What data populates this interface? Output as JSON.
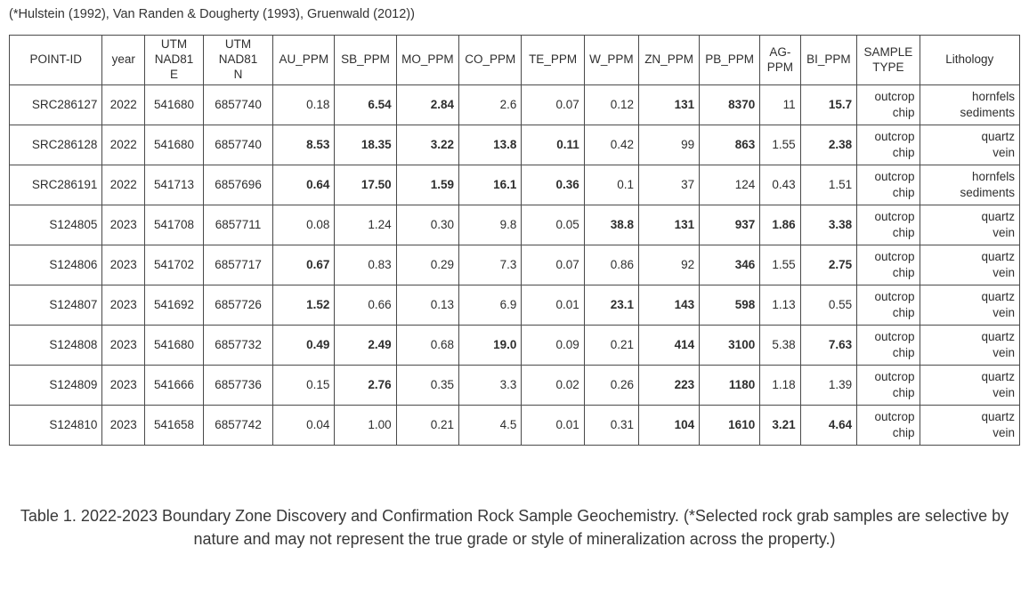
{
  "attribution": "(*Hulstein (1992), Van Randen & Dougherty (1993), Gruenwald (2012))",
  "caption": "Table 1. 2022-2023 Boundary Zone Discovery and Confirmation Rock Sample Geochemistry. (*Selected rock grab samples are selective by nature and may not represent the true grade or style of mineralization across the property.)",
  "colors": {
    "text": "#2e2e2e",
    "border": "#4a4a4a",
    "background": "#ffffff"
  },
  "table": {
    "columns": [
      {
        "key": "point_id",
        "label": "POINT-ID",
        "align": "right",
        "width": "9.2%"
      },
      {
        "key": "year",
        "label": "year",
        "align": "center",
        "width": "4.2%"
      },
      {
        "key": "utm_nad81_e",
        "label": "UTM\nNAD81\nE",
        "align": "center",
        "width": "5.8%"
      },
      {
        "key": "utm_nad81_n",
        "label": "UTM\nNAD81\nN",
        "align": "center",
        "width": "6.9%"
      },
      {
        "key": "au_ppm",
        "label": "AU_PPM",
        "align": "right",
        "width": "6.1%"
      },
      {
        "key": "sb_ppm",
        "label": "SB_PPM",
        "align": "right",
        "width": "6.1%"
      },
      {
        "key": "mo_ppm",
        "label": "MO_PPM",
        "align": "right",
        "width": "6.2%"
      },
      {
        "key": "co_ppm",
        "label": "CO_PPM",
        "align": "right",
        "width": "6.2%"
      },
      {
        "key": "te_ppm",
        "label": "TE_PPM",
        "align": "right",
        "width": "6.2%"
      },
      {
        "key": "w_ppm",
        "label": "W_PPM",
        "align": "right",
        "width": "5.4%"
      },
      {
        "key": "zn_ppm",
        "label": "ZN_PPM",
        "align": "right",
        "width": "6.0%"
      },
      {
        "key": "pb_ppm",
        "label": "PB_PPM",
        "align": "right",
        "width": "6.0%"
      },
      {
        "key": "ag_ppm",
        "label": "AG-\nPPM",
        "align": "right",
        "width": "4.0%"
      },
      {
        "key": "bi_ppm",
        "label": "BI_PPM",
        "align": "right",
        "width": "5.6%"
      },
      {
        "key": "sample_type",
        "label": "SAMPLE\nTYPE",
        "align": "right",
        "width": "6.2%"
      },
      {
        "key": "lithology",
        "label": "Lithology",
        "align": "right",
        "width": "9.9%"
      }
    ],
    "rows": [
      [
        {
          "v": "SRC286127"
        },
        {
          "v": "2022"
        },
        {
          "v": "541680"
        },
        {
          "v": "6857740"
        },
        {
          "v": "0.18"
        },
        {
          "v": "6.54",
          "b": true
        },
        {
          "v": "2.84",
          "b": true
        },
        {
          "v": "2.6"
        },
        {
          "v": "0.07"
        },
        {
          "v": "0.12"
        },
        {
          "v": "131",
          "b": true
        },
        {
          "v": "8370",
          "b": true
        },
        {
          "v": "11"
        },
        {
          "v": "15.7",
          "b": true
        },
        {
          "v": "outcrop\nchip"
        },
        {
          "v": "hornfels\nsediments"
        }
      ],
      [
        {
          "v": "SRC286128"
        },
        {
          "v": "2022"
        },
        {
          "v": "541680"
        },
        {
          "v": "6857740"
        },
        {
          "v": "8.53",
          "b": true
        },
        {
          "v": "18.35",
          "b": true
        },
        {
          "v": "3.22",
          "b": true
        },
        {
          "v": "13.8",
          "b": true
        },
        {
          "v": "0.11",
          "b": true
        },
        {
          "v": "0.42"
        },
        {
          "v": "99"
        },
        {
          "v": "863",
          "b": true
        },
        {
          "v": "1.55"
        },
        {
          "v": "2.38",
          "b": true
        },
        {
          "v": "outcrop\nchip"
        },
        {
          "v": "quartz\nvein"
        }
      ],
      [
        {
          "v": "SRC286191"
        },
        {
          "v": "2022"
        },
        {
          "v": "541713"
        },
        {
          "v": "6857696"
        },
        {
          "v": "0.64",
          "b": true
        },
        {
          "v": "17.50",
          "b": true
        },
        {
          "v": "1.59",
          "b": true
        },
        {
          "v": "16.1",
          "b": true
        },
        {
          "v": "0.36",
          "b": true
        },
        {
          "v": "0.1"
        },
        {
          "v": "37"
        },
        {
          "v": "124"
        },
        {
          "v": "0.43"
        },
        {
          "v": "1.51"
        },
        {
          "v": "outcrop\nchip"
        },
        {
          "v": "hornfels\nsediments"
        }
      ],
      [
        {
          "v": "S124805"
        },
        {
          "v": "2023"
        },
        {
          "v": "541708"
        },
        {
          "v": "6857711"
        },
        {
          "v": "0.08"
        },
        {
          "v": "1.24"
        },
        {
          "v": "0.30"
        },
        {
          "v": "9.8"
        },
        {
          "v": "0.05"
        },
        {
          "v": "38.8",
          "b": true
        },
        {
          "v": "131",
          "b": true
        },
        {
          "v": "937",
          "b": true
        },
        {
          "v": "1.86",
          "b": true
        },
        {
          "v": "3.38",
          "b": true
        },
        {
          "v": "outcrop\nchip"
        },
        {
          "v": "quartz\nvein"
        }
      ],
      [
        {
          "v": "S124806"
        },
        {
          "v": "2023"
        },
        {
          "v": "541702"
        },
        {
          "v": "6857717"
        },
        {
          "v": "0.67",
          "b": true
        },
        {
          "v": "0.83"
        },
        {
          "v": "0.29"
        },
        {
          "v": "7.3"
        },
        {
          "v": "0.07"
        },
        {
          "v": "0.86"
        },
        {
          "v": "92"
        },
        {
          "v": "346",
          "b": true
        },
        {
          "v": "1.55"
        },
        {
          "v": "2.75",
          "b": true
        },
        {
          "v": "outcrop\nchip"
        },
        {
          "v": "quartz\nvein"
        }
      ],
      [
        {
          "v": "S124807"
        },
        {
          "v": "2023"
        },
        {
          "v": "541692"
        },
        {
          "v": "6857726"
        },
        {
          "v": "1.52",
          "b": true
        },
        {
          "v": "0.66"
        },
        {
          "v": "0.13"
        },
        {
          "v": "6.9"
        },
        {
          "v": "0.01"
        },
        {
          "v": "23.1",
          "b": true
        },
        {
          "v": "143",
          "b": true
        },
        {
          "v": "598",
          "b": true
        },
        {
          "v": "1.13"
        },
        {
          "v": "0.55"
        },
        {
          "v": "outcrop\nchip"
        },
        {
          "v": "quartz\nvein"
        }
      ],
      [
        {
          "v": "S124808"
        },
        {
          "v": "2023"
        },
        {
          "v": "541680"
        },
        {
          "v": "6857732"
        },
        {
          "v": "0.49",
          "b": true
        },
        {
          "v": "2.49",
          "b": true
        },
        {
          "v": "0.68"
        },
        {
          "v": "19.0",
          "b": true
        },
        {
          "v": "0.09"
        },
        {
          "v": "0.21"
        },
        {
          "v": "414",
          "b": true
        },
        {
          "v": "3100",
          "b": true
        },
        {
          "v": "5.38"
        },
        {
          "v": "7.63",
          "b": true
        },
        {
          "v": "outcrop\nchip"
        },
        {
          "v": "quartz\nvein"
        }
      ],
      [
        {
          "v": "S124809"
        },
        {
          "v": "2023"
        },
        {
          "v": "541666"
        },
        {
          "v": "6857736"
        },
        {
          "v": "0.15"
        },
        {
          "v": "2.76",
          "b": true
        },
        {
          "v": "0.35"
        },
        {
          "v": "3.3"
        },
        {
          "v": "0.02"
        },
        {
          "v": "0.26"
        },
        {
          "v": "223",
          "b": true
        },
        {
          "v": "1180",
          "b": true
        },
        {
          "v": "1.18"
        },
        {
          "v": "1.39"
        },
        {
          "v": "outcrop\nchip"
        },
        {
          "v": "quartz\nvein"
        }
      ],
      [
        {
          "v": "S124810"
        },
        {
          "v": "2023"
        },
        {
          "v": "541658"
        },
        {
          "v": "6857742"
        },
        {
          "v": "0.04"
        },
        {
          "v": "1.00"
        },
        {
          "v": "0.21"
        },
        {
          "v": "4.5"
        },
        {
          "v": "0.01"
        },
        {
          "v": "0.31"
        },
        {
          "v": "104",
          "b": true
        },
        {
          "v": "1610",
          "b": true
        },
        {
          "v": "3.21",
          "b": true
        },
        {
          "v": "4.64",
          "b": true
        },
        {
          "v": "outcrop\nchip"
        },
        {
          "v": "quartz\nvein"
        }
      ]
    ]
  }
}
